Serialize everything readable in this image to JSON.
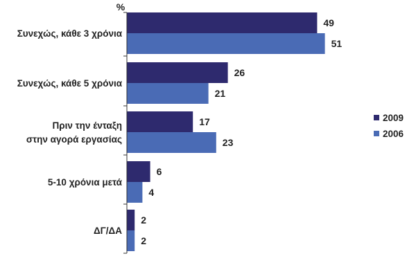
{
  "chart_data": {
    "type": "bar",
    "orientation": "horizontal",
    "unit": "%",
    "categories": [
      [
        "Συνεχώς, κάθε 3 χρόνια"
      ],
      [
        "Συνεχώς, κάθε 5 χρόνια"
      ],
      [
        "Πριν την ένταξη",
        "στην αγορά εργασίας"
      ],
      [
        "5-10 χρόνια μετά"
      ],
      [
        "ΔΓ/ΔΑ"
      ]
    ],
    "series": [
      {
        "name": "2009",
        "color": "#2e2a6e",
        "values": [
          49,
          26,
          17,
          6,
          2
        ]
      },
      {
        "name": "2006",
        "color": "#4a6bb5",
        "values": [
          51,
          21,
          23,
          4,
          2
        ]
      }
    ],
    "xlim": [
      0,
      55
    ],
    "grid": false,
    "legend_position": "right"
  }
}
